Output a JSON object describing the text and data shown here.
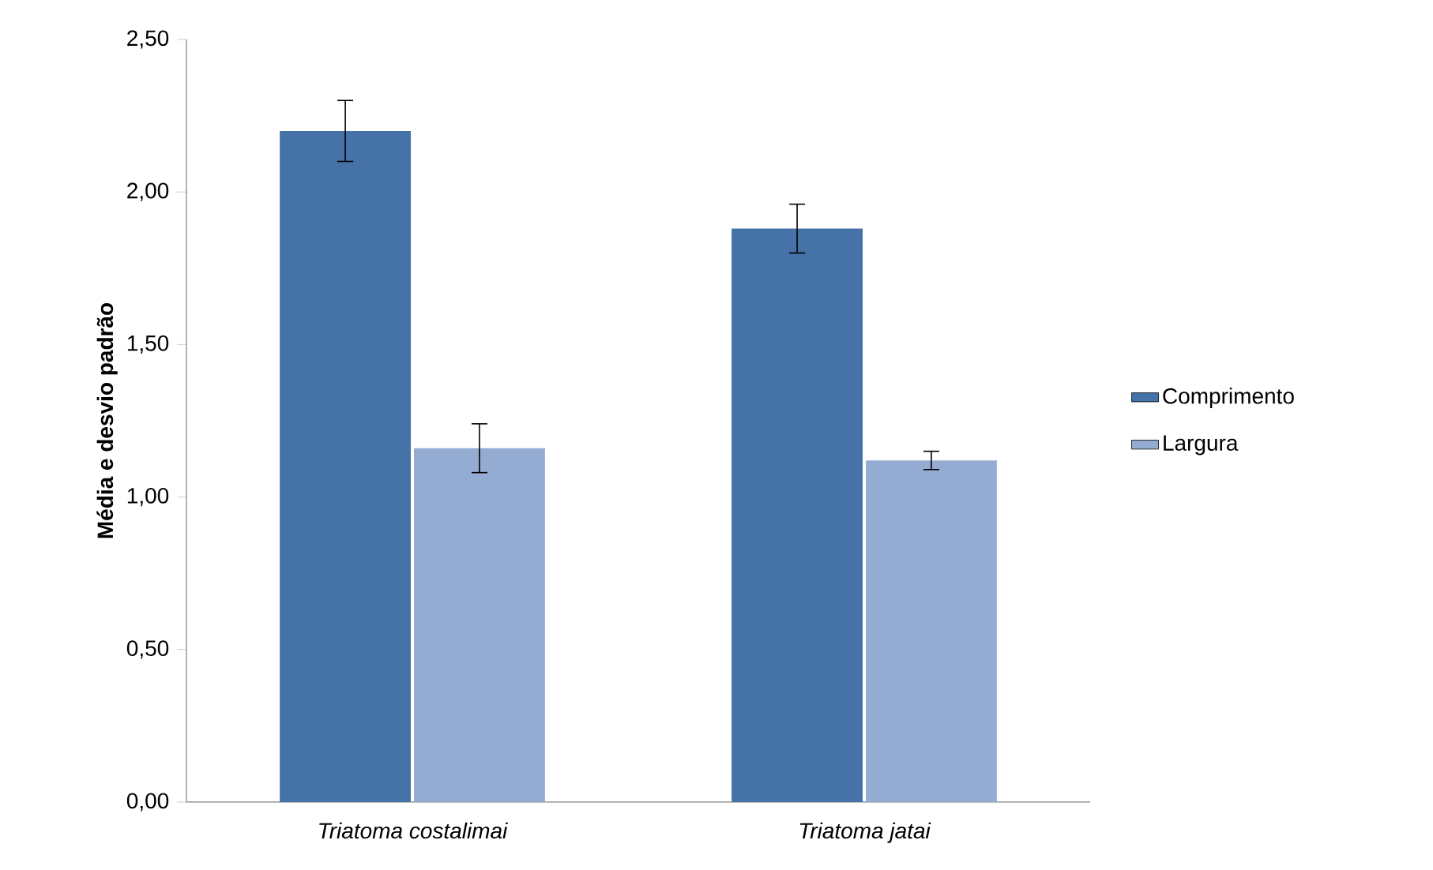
{
  "chart_data": {
    "type": "bar",
    "ylabel": "Média e desvio padrão",
    "categories": [
      "Triatoma costalimai",
      "Triatoma jatai"
    ],
    "series": [
      {
        "name": "Comprimento",
        "color": "#4572a7",
        "values": [
          2.2,
          1.88
        ],
        "errors": [
          0.1,
          0.08
        ]
      },
      {
        "name": "Largura",
        "color": "#94abd2",
        "values": [
          1.16,
          1.12
        ],
        "errors": [
          0.08,
          0.03
        ]
      }
    ],
    "ylim": [
      0,
      2.5
    ],
    "yticks": [
      {
        "value": 0,
        "label": "0,00"
      },
      {
        "value": 0.5,
        "label": "0,50"
      },
      {
        "value": 1,
        "label": "1,00"
      },
      {
        "value": 1.5,
        "label": "1,50"
      },
      {
        "value": 2,
        "label": "2,00"
      },
      {
        "value": 2.5,
        "label": "2,50"
      }
    ],
    "grid": false,
    "legend": "right"
  }
}
